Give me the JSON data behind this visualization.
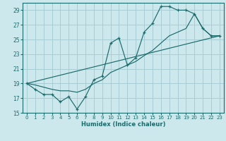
{
  "xlabel": "Humidex (Indice chaleur)",
  "xlim": [
    -0.5,
    23.5
  ],
  "ylim": [
    15,
    30
  ],
  "yticks": [
    15,
    17,
    19,
    21,
    23,
    25,
    27,
    29
  ],
  "xticks": [
    0,
    1,
    2,
    3,
    4,
    5,
    6,
    7,
    8,
    9,
    10,
    11,
    12,
    13,
    14,
    15,
    16,
    17,
    18,
    19,
    20,
    21,
    22,
    23
  ],
  "bg_color": "#cde8ec",
  "grid_color": "#a8cdd4",
  "line_color": "#1a6b6b",
  "line1_x": [
    0,
    1,
    2,
    3,
    4,
    5,
    6,
    7,
    8,
    9,
    10,
    11,
    12,
    13,
    14,
    15,
    16,
    17,
    18,
    19,
    20,
    21,
    22,
    23
  ],
  "line1_y": [
    19,
    18.2,
    17.5,
    17.5,
    16.5,
    17.2,
    15.5,
    17.2,
    19.5,
    20,
    24.5,
    25.2,
    21.5,
    22.5,
    26,
    27.2,
    29.5,
    29.5,
    29,
    29,
    28.5,
    26.5,
    25.5,
    25.5
  ],
  "line2_x": [
    0,
    1,
    2,
    3,
    4,
    5,
    6,
    7,
    8,
    9,
    10,
    11,
    12,
    13,
    14,
    15,
    16,
    17,
    18,
    19,
    20,
    21,
    22,
    23
  ],
  "line2_y": [
    19,
    18.8,
    18.5,
    18.2,
    18,
    18,
    17.8,
    18.2,
    19,
    19.5,
    20.5,
    21,
    21.5,
    22,
    22.8,
    23.5,
    24.5,
    25.5,
    26,
    26.5,
    28.5,
    26.5,
    25.5,
    25.5
  ],
  "line3_x": [
    0,
    23
  ],
  "line3_y": [
    19,
    25.5
  ]
}
